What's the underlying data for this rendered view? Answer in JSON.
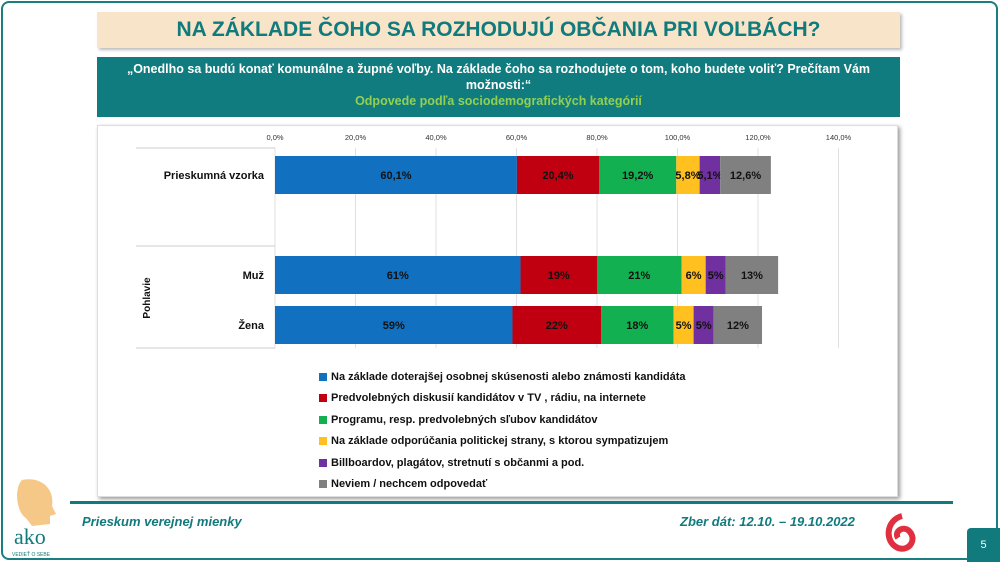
{
  "title": "NA ZÁKLADE ČOHO SA ROZHODUJÚ OBČANIA PRI VOĽBÁCH?",
  "question": "„Onedlho sa budú konať komunálne a župné voľby. Na základe čoho sa rozhodujete o tom, koho budete voliť? Prečítam Vám možnosti:“",
  "subtitle": "Odpovede podľa sociodemografických kategórií",
  "footer": {
    "left": "Prieskum verejnej mienky",
    "right": "Zber dát: 12.10. – 19.10.2022",
    "page": "5",
    "logo_text": "ako",
    "logo_tagline": "VEDIEŤ O SEBE"
  },
  "chart_data": {
    "type": "bar",
    "orientation": "horizontal-stacked",
    "xlim": [
      0,
      140
    ],
    "ticks": [
      "0,0%",
      "20,0%",
      "40,0%",
      "60,0%",
      "80,0%",
      "100,0%",
      "120,0%",
      "140,0%"
    ],
    "group_label": "Pohlavie",
    "categories": [
      "Prieskumná vzorka",
      "Muž",
      "Žena"
    ],
    "grid": true,
    "legend_position": "bottom",
    "series": [
      {
        "name": "Na základe doterajšej osobnej skúsenosti alebo známosti kandidáta",
        "color": "#1170c0",
        "values": [
          60.1,
          61,
          59
        ],
        "labels": [
          "60,1%",
          "61%",
          "59%"
        ]
      },
      {
        "name": "Predvolebných diskusií kandidátov v TV , rádiu, na internete",
        "color": "#c00010",
        "values": [
          20.4,
          19,
          22
        ],
        "labels": [
          "20,4%",
          "19%",
          "22%"
        ]
      },
      {
        "name": "Programu, resp. predvolebných sľubov kandidátov",
        "color": "#12b050",
        "values": [
          19.2,
          21,
          18
        ],
        "labels": [
          "19,2%",
          "21%",
          "18%"
        ]
      },
      {
        "name": "Na základe odporúčania politickej strany, s ktorou sympatizujem",
        "color": "#ffc020",
        "values": [
          5.8,
          6,
          5
        ],
        "labels": [
          "5,8%",
          "6%",
          "5%"
        ]
      },
      {
        "name": "Billboardov, plagátov, stretnutí s občanmi a pod.",
        "color": "#7030a0",
        "values": [
          5.1,
          5,
          5
        ],
        "labels": [
          "5,1%",
          "5%",
          "5%"
        ]
      },
      {
        "name": "Neviem / nechcem odpovedať",
        "color": "#808080",
        "values": [
          12.6,
          13,
          12
        ],
        "labels": [
          "12,6%",
          "13%",
          "12%"
        ]
      }
    ]
  }
}
